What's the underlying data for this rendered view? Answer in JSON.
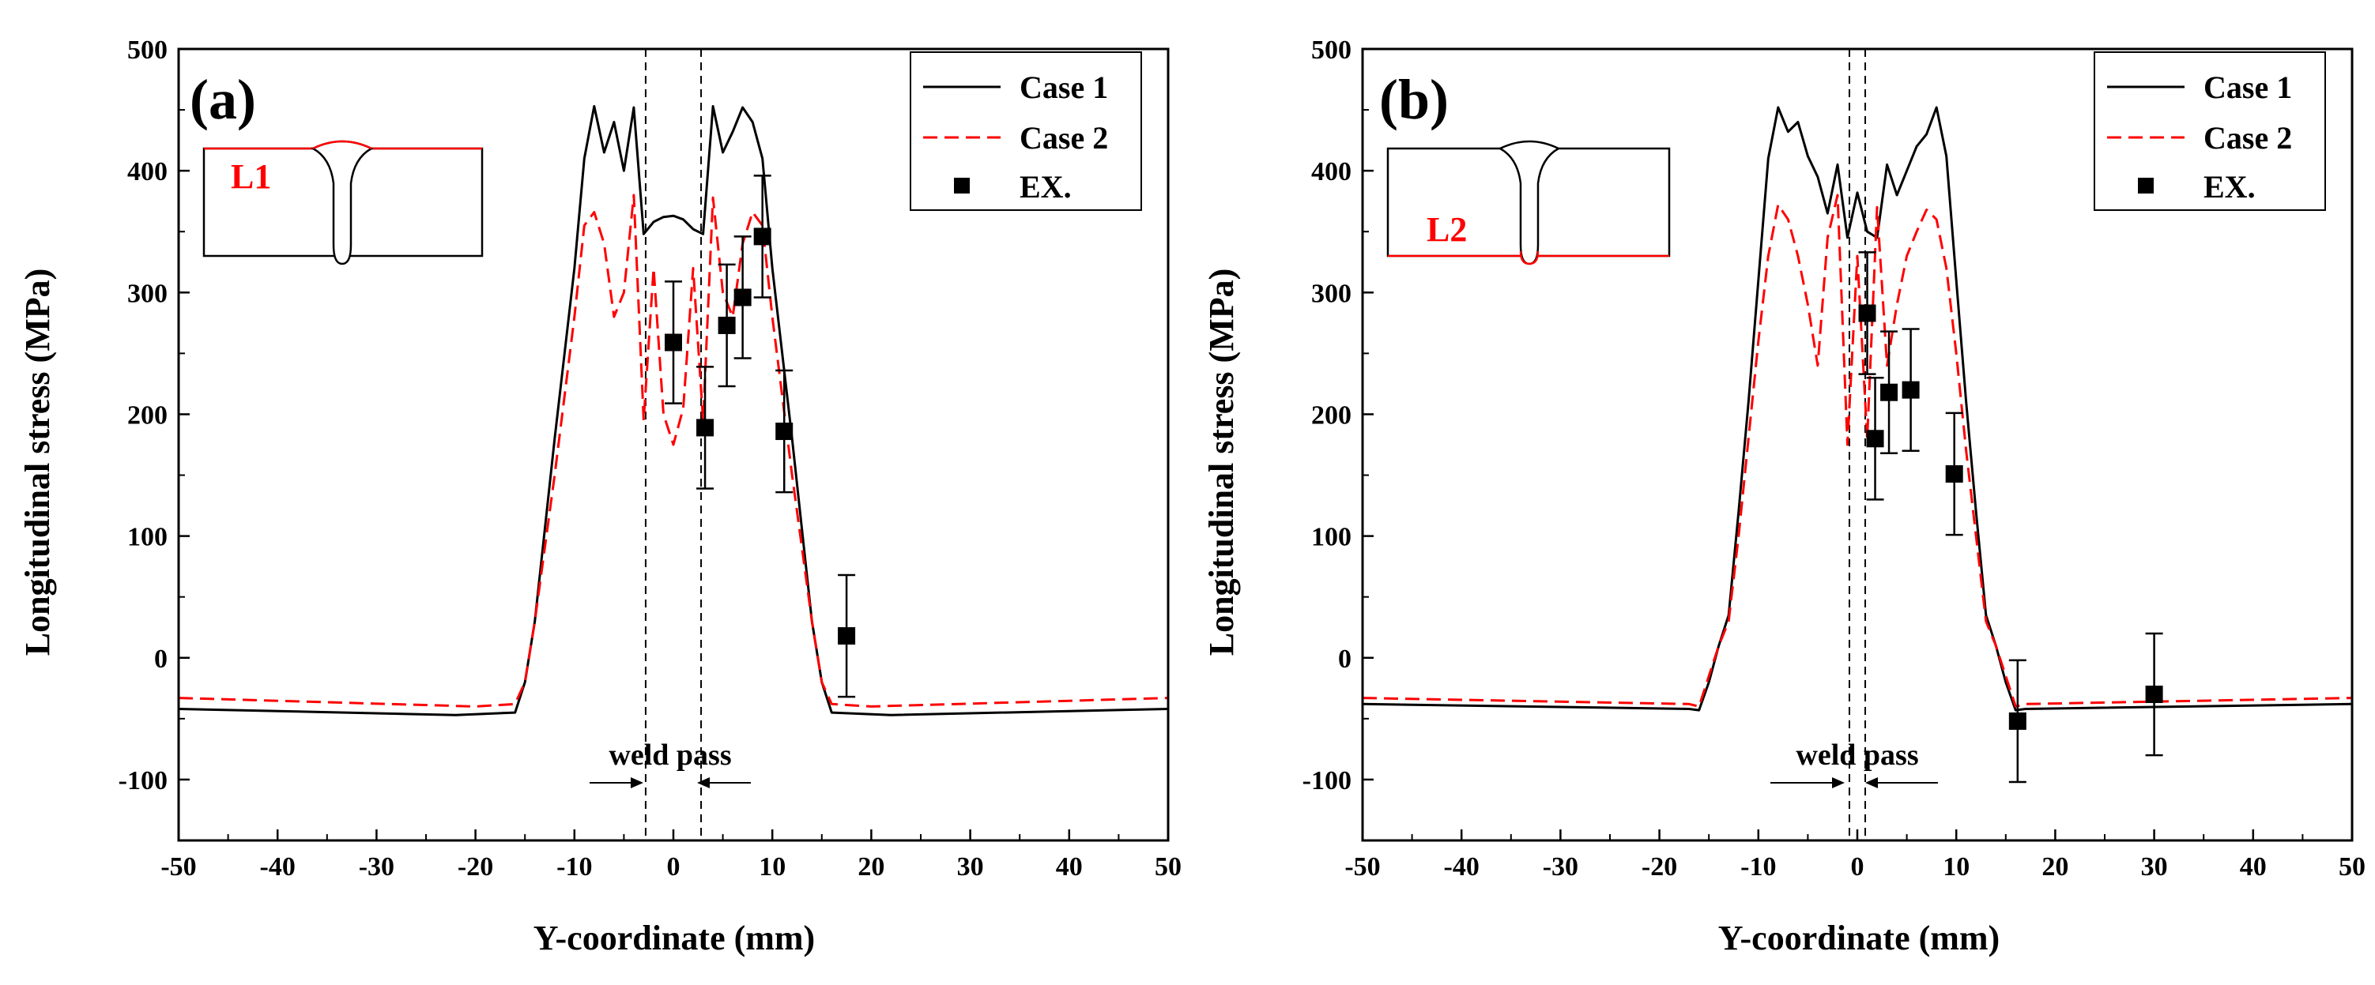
{
  "figure": {
    "xlabel": "Y-coordinate (mm)",
    "ylabel": "Longitudinal stress (MPa)"
  },
  "colors": {
    "case1": "#000000",
    "case2": "#ff0000",
    "ex": "#000000"
  },
  "chart_data": [
    {
      "type": "line",
      "panel_label": "(a)",
      "inset_label": "L1",
      "title": "",
      "xlabel": "Y-coordinate (mm)",
      "ylabel": "Longitudinal stress (MPa)",
      "xlim": [
        -50,
        50
      ],
      "ylim": [
        -150,
        500
      ],
      "xticks": [
        -50,
        -40,
        -30,
        -20,
        -10,
        0,
        10,
        20,
        30,
        40,
        50
      ],
      "yticks": [
        -100,
        0,
        100,
        200,
        300,
        400,
        500
      ],
      "weld_lines": [
        -2.8,
        2.8
      ],
      "annotation": "weld pass",
      "legend_position": "top-right",
      "series": [
        {
          "name": "Case 1",
          "style": "solid",
          "x": [
            -50,
            -22,
            -16,
            -15,
            -14,
            -12,
            -10,
            -9,
            -8,
            -7,
            -6,
            -5,
            -4,
            -3,
            -2,
            -1,
            0,
            1,
            2,
            3,
            4,
            5,
            6,
            7,
            8,
            9,
            10,
            12,
            14,
            15,
            16,
            22,
            50
          ],
          "y": [
            -42,
            -47,
            -45,
            -20,
            30,
            180,
            320,
            410,
            453,
            415,
            440,
            400,
            452,
            348,
            358,
            362,
            363,
            360,
            352,
            348,
            453,
            415,
            432,
            452,
            440,
            410,
            320,
            180,
            30,
            -20,
            -45,
            -47,
            -42
          ]
        },
        {
          "name": "Case 2",
          "style": "dashed",
          "x": [
            -50,
            -20,
            -16,
            -15,
            -14,
            -12,
            -10,
            -9,
            -8,
            -7,
            -6,
            -5,
            -4,
            -3,
            -2,
            -1,
            0,
            1,
            2,
            3,
            4,
            5,
            6,
            7,
            8,
            9,
            10,
            12,
            14,
            15,
            16,
            20,
            50
          ],
          "y": [
            -33,
            -40,
            -38,
            -20,
            30,
            150,
            280,
            355,
            366,
            340,
            280,
            300,
            380,
            195,
            320,
            200,
            175,
            205,
            320,
            195,
            378,
            300,
            280,
            340,
            366,
            355,
            280,
            150,
            30,
            -20,
            -38,
            -40,
            -33
          ]
        }
      ],
      "points": {
        "name": "EX.",
        "x": [
          0,
          3.2,
          5.4,
          7,
          9,
          11.2,
          17.5
        ],
        "y": [
          259,
          189,
          273,
          296,
          346,
          186,
          18
        ],
        "err": [
          50,
          50,
          50,
          50,
          50,
          50,
          50
        ]
      }
    },
    {
      "type": "line",
      "panel_label": "(b)",
      "inset_label": "L2",
      "title": "",
      "xlabel": "Y-coordinate (mm)",
      "ylabel": "Longitudinal stress (MPa)",
      "xlim": [
        -50,
        50
      ],
      "ylim": [
        -150,
        500
      ],
      "xticks": [
        -50,
        -40,
        -30,
        -20,
        -10,
        0,
        10,
        20,
        30,
        40,
        50
      ],
      "yticks": [
        -100,
        0,
        100,
        200,
        300,
        400,
        500
      ],
      "weld_lines": [
        -0.8,
        0.8
      ],
      "annotation": "weld pass",
      "legend_position": "top-right",
      "series": [
        {
          "name": "Case 1",
          "style": "solid",
          "x": [
            -50,
            -17,
            -16,
            -15,
            -14,
            -13,
            -12,
            -11,
            -10,
            -9,
            -8,
            -7,
            -6,
            -5,
            -4,
            -3,
            -2,
            -1,
            0,
            1,
            2,
            3,
            4,
            5,
            6,
            7,
            8,
            9,
            10,
            11,
            12,
            13,
            14,
            15,
            16,
            17,
            50
          ],
          "y": [
            -38,
            -42,
            -43,
            -20,
            10,
            35,
            120,
            210,
            310,
            410,
            452,
            432,
            440,
            412,
            395,
            365,
            405,
            345,
            382,
            350,
            345,
            405,
            380,
            400,
            420,
            430,
            452,
            412,
            310,
            210,
            120,
            35,
            10,
            -20,
            -43,
            -42,
            -38
          ]
        },
        {
          "name": "Case 2",
          "style": "dashed",
          "x": [
            -50,
            -17,
            -16,
            -15,
            -14,
            -13,
            -12,
            -11,
            -10,
            -9,
            -8,
            -7,
            -6,
            -5,
            -4,
            -3,
            -2,
            -1,
            0,
            1,
            2,
            3,
            4,
            5,
            6,
            7,
            8,
            9,
            10,
            11,
            12,
            13,
            14,
            15,
            16,
            17,
            50
          ],
          "y": [
            -33,
            -38,
            -40,
            -15,
            10,
            30,
            100,
            180,
            260,
            330,
            372,
            360,
            330,
            290,
            240,
            345,
            380,
            175,
            330,
            180,
            370,
            240,
            290,
            330,
            350,
            368,
            360,
            320,
            250,
            170,
            100,
            30,
            10,
            -15,
            -40,
            -38,
            -33
          ]
        }
      ],
      "points": {
        "name": "EX.",
        "x": [
          1,
          1.8,
          3.2,
          5.4,
          9.8,
          16.2,
          30
        ],
        "y": [
          283,
          180,
          218,
          220,
          151,
          -52,
          -30
        ],
        "err": [
          50,
          50,
          50,
          50,
          50,
          50,
          50
        ]
      }
    }
  ]
}
